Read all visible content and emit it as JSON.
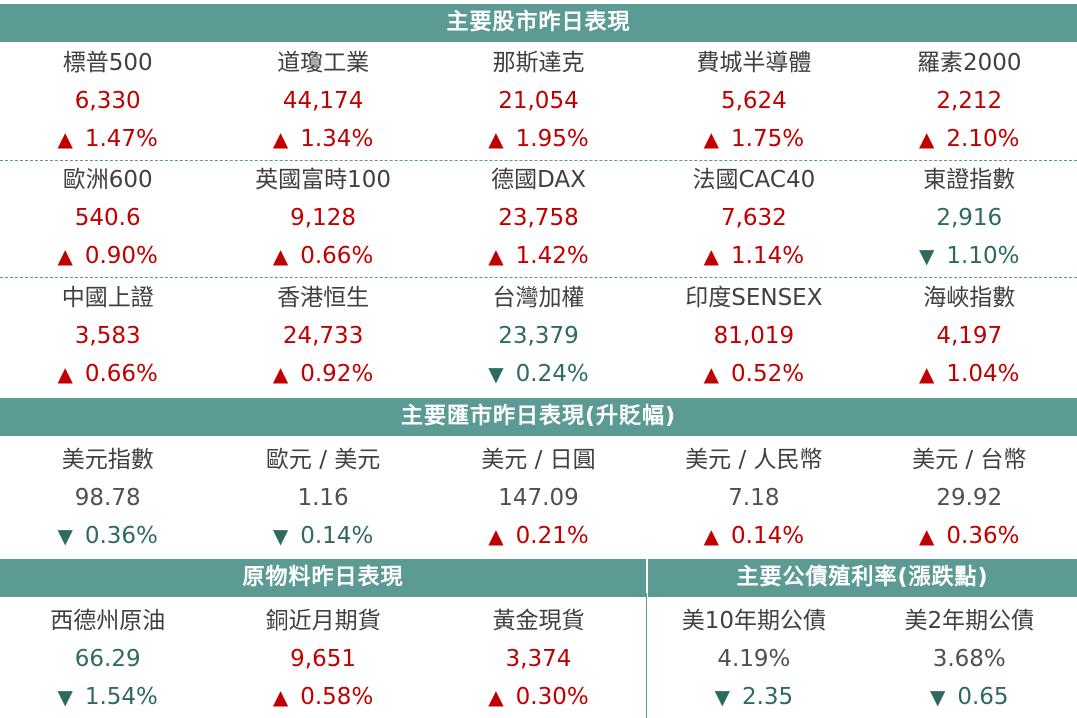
{
  "colors": {
    "header_bg": "#5b9b93",
    "up": "#c00000",
    "down": "#2e6b5e",
    "neutral": "#505050"
  },
  "arrows": {
    "up": "▲",
    "down": "▼"
  },
  "stock_header": "主要股市昨日表現",
  "stocks": [
    {
      "name": "標普500",
      "value": "6,330",
      "dir": "up",
      "change": "1.47%"
    },
    {
      "name": "道瓊工業",
      "value": "44,174",
      "dir": "up",
      "change": "1.34%"
    },
    {
      "name": "那斯達克",
      "value": "21,054",
      "dir": "up",
      "change": "1.95%"
    },
    {
      "name": "費城半導體",
      "value": "5,624",
      "dir": "up",
      "change": "1.75%"
    },
    {
      "name": "羅素2000",
      "value": "2,212",
      "dir": "up",
      "change": "2.10%"
    },
    {
      "name": "歐洲600",
      "value": "540.6",
      "dir": "up",
      "change": "0.90%"
    },
    {
      "name": "英國富時100",
      "value": "9,128",
      "dir": "up",
      "change": "0.66%"
    },
    {
      "name": "德國DAX",
      "value": "23,758",
      "dir": "up",
      "change": "1.42%"
    },
    {
      "name": "法國CAC40",
      "value": "7,632",
      "dir": "up",
      "change": "1.14%"
    },
    {
      "name": "東證指數",
      "value": "2,916",
      "dir": "down",
      "change": "1.10%"
    },
    {
      "name": "中國上證",
      "value": "3,583",
      "dir": "up",
      "change": "0.66%"
    },
    {
      "name": "香港恒生",
      "value": "24,733",
      "dir": "up",
      "change": "0.92%"
    },
    {
      "name": "台灣加權",
      "value": "23,379",
      "dir": "down",
      "change": "0.24%"
    },
    {
      "name": "印度SENSEX",
      "value": "81,019",
      "dir": "up",
      "change": "0.52%"
    },
    {
      "name": "海峽指數",
      "value": "4,197",
      "dir": "up",
      "change": "1.04%"
    }
  ],
  "fx_header": "主要匯市昨日表現(升貶幅)",
  "fx": [
    {
      "name": "美元指數",
      "value": "98.78",
      "dir": "down",
      "change": "0.36%"
    },
    {
      "name": "歐元 / 美元",
      "value": "1.16",
      "dir": "down",
      "change": "0.14%"
    },
    {
      "name": "美元 / 日圓",
      "value": "147.09",
      "dir": "up",
      "change": "0.21%"
    },
    {
      "name": "美元 / 人民幣",
      "value": "7.18",
      "dir": "up",
      "change": "0.14%"
    },
    {
      "name": "美元 / 台幣",
      "value": "29.92",
      "dir": "up",
      "change": "0.36%"
    }
  ],
  "commodity_header": "原物料昨日表現",
  "bond_header": "主要公債殖利率(漲跌點)",
  "commodities": [
    {
      "name": "西德州原油",
      "value": "66.29",
      "dir": "down",
      "change": "1.54%"
    },
    {
      "name": "銅近月期貨",
      "value": "9,651",
      "dir": "up",
      "change": "0.58%"
    },
    {
      "name": "黃金現貨",
      "value": "3,374",
      "dir": "up",
      "change": "0.30%"
    }
  ],
  "bonds": [
    {
      "name": "美10年期公債",
      "value": "4.19%",
      "dir": "down",
      "change": "2.35"
    },
    {
      "name": "美2年期公債",
      "value": "3.68%",
      "dir": "down",
      "change": "0.65"
    }
  ]
}
